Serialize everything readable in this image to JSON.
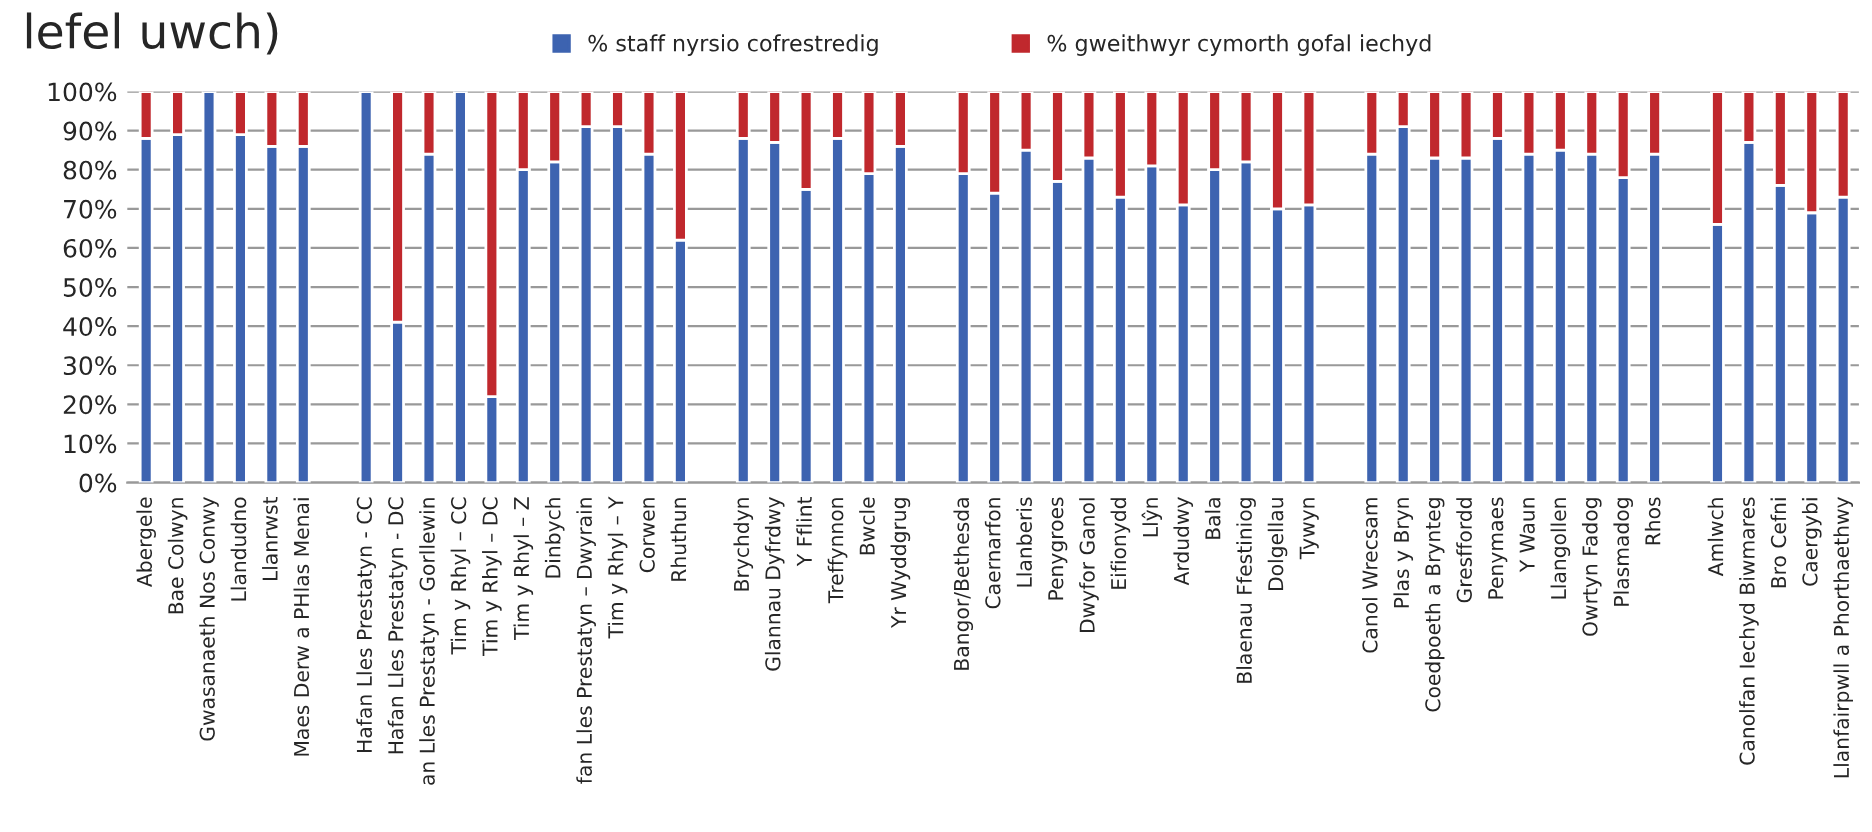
{
  "chart_data": {
    "type": "bar",
    "stacked": true,
    "title": "lefel uwch)",
    "categories": [
      "Abergele",
      "Bae Colwyn",
      "Gwasanaeth Nos Conwy",
      "Llandudno",
      "Llanrwst",
      "Maes Derw a PHlas Menai",
      null,
      "Hafan Lles Prestatyn - CC",
      "Hafan Lles Prestatyn - DC",
      "an Lles Prestatyn - Gorllewin",
      "Tim y Rhyl – CC",
      "Tim y Rhyl – DC",
      "Tim y Rhyl – Z",
      "Dinbych",
      "fan Lles Prestatyn – Dwyrain",
      "Tim y Rhyl – Y",
      "Corwen",
      "Rhuthun",
      null,
      "Brychdyn",
      "Glannau Dyfrdwy",
      "Y Fflint",
      "Treffynnon",
      "Bwcle",
      "Yr Wyddgrug",
      null,
      "Bangor/Bethesda",
      "Caernarfon",
      "Llanberis",
      "Penygroes",
      "Dwyfor Ganol",
      "Eifionydd",
      "Llŷn",
      "Ardudwy",
      "Bala",
      "Blaenau Ffestiniog",
      "Dolgellau",
      "Tywyn",
      null,
      "Canol Wrecsam",
      "Plas y Bryn",
      "Coedpoeth a Brynteg",
      "Gresffordd",
      "Penymaes",
      "Y Waun",
      "Llangollen",
      "Owrtyn Fadog",
      "Plasmadog",
      "Rhos",
      null,
      "Amlwch",
      "Canolfan Iechyd Biwmares",
      "Bro Cefni",
      "Caergybi",
      "Llanfairpwll a Phorthaethwy"
    ],
    "series": [
      {
        "name": "% staff nyrsio cofrestredig",
        "color": "#3d63b0",
        "values": [
          88,
          89,
          100,
          89,
          86,
          86,
          null,
          100,
          41,
          84,
          100,
          22,
          80,
          82,
          91,
          91,
          84,
          62,
          null,
          88,
          87,
          75,
          88,
          79,
          86,
          null,
          79,
          74,
          85,
          77,
          83,
          73,
          81,
          71,
          80,
          82,
          70,
          71,
          null,
          84,
          91,
          83,
          83,
          88,
          84,
          85,
          84,
          78,
          84,
          null,
          66,
          87,
          76,
          69,
          73
        ]
      },
      {
        "name": "% gweithwyr cymorth gofal iechyd",
        "color": "#c0282d",
        "values": [
          12,
          11,
          null,
          11,
          14,
          14,
          null,
          null,
          59,
          16,
          null,
          78,
          20,
          18,
          9,
          9,
          16,
          38,
          null,
          12,
          13,
          25,
          12,
          21,
          14,
          null,
          21,
          26,
          15,
          23,
          17,
          27,
          19,
          29,
          20,
          18,
          30,
          29,
          null,
          16,
          9,
          17,
          17,
          12,
          16,
          15,
          16,
          22,
          16,
          null,
          34,
          13,
          24,
          31,
          27
        ]
      }
    ],
    "ylim": [
      0,
      100
    ],
    "yticks": [
      {
        "value": 0,
        "label": "0%"
      },
      {
        "value": 10,
        "label": "10%"
      },
      {
        "value": 20,
        "label": "20%"
      },
      {
        "value": 30,
        "label": "30%"
      },
      {
        "value": 40,
        "label": "40%"
      },
      {
        "value": 50,
        "label": "50%"
      },
      {
        "value": 60,
        "label": "60%"
      },
      {
        "value": 70,
        "label": "70%"
      },
      {
        "value": 80,
        "label": "80%"
      },
      {
        "value": 90,
        "label": "90%"
      },
      {
        "value": 100,
        "label": "100%"
      }
    ],
    "grid": "y",
    "legend": "top"
  }
}
